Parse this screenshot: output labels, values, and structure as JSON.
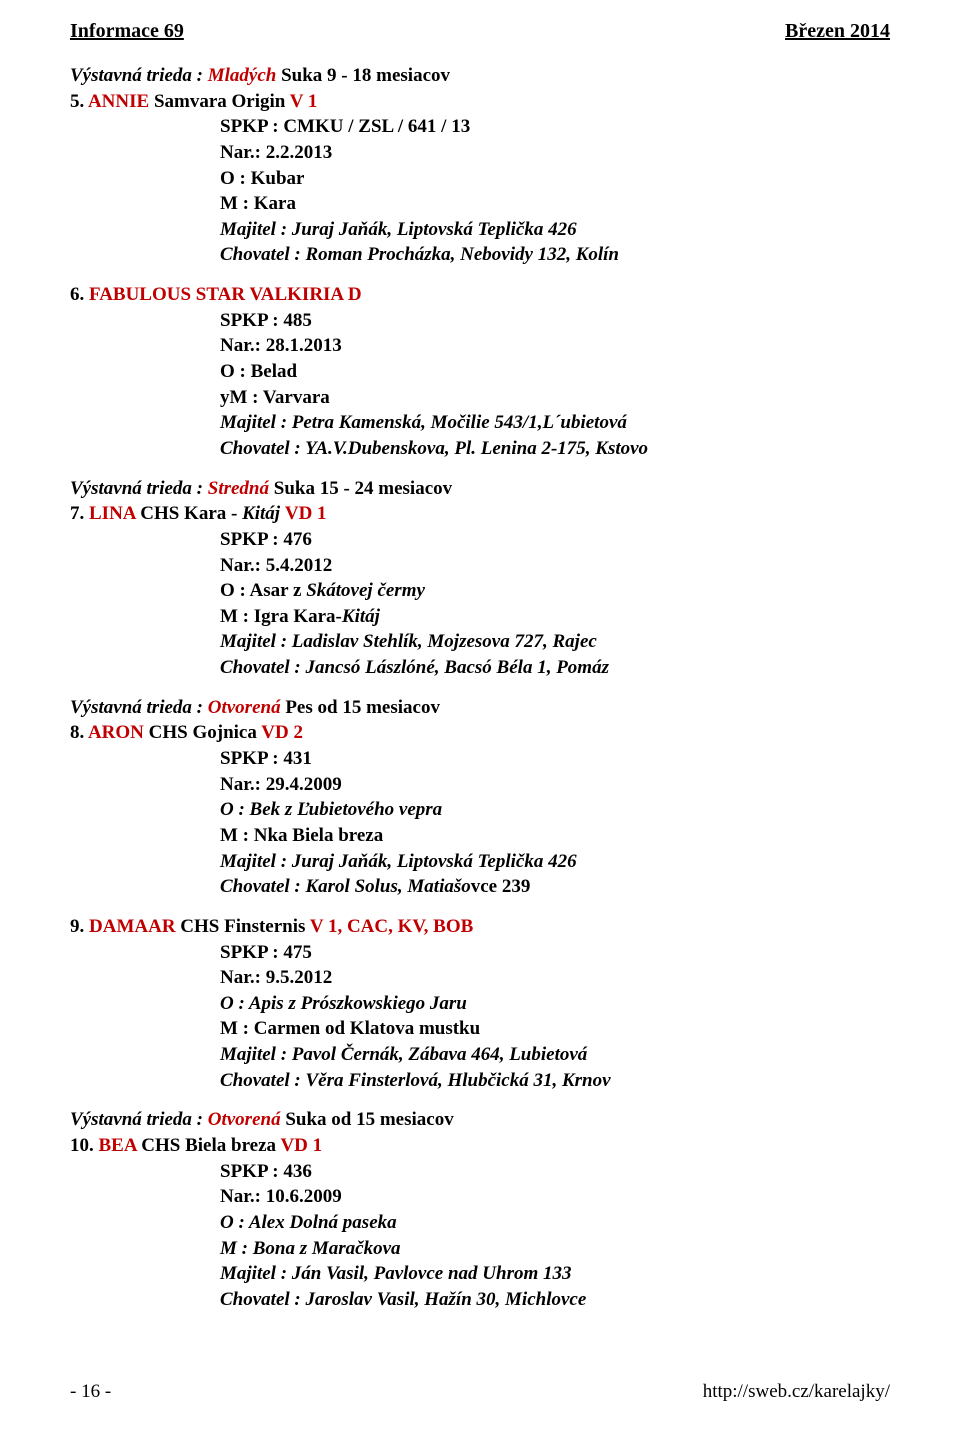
{
  "header": {
    "left": "Informace 69",
    "right": "Březen 2014"
  },
  "footer": {
    "page": "- 16 -",
    "url": "http://sweb.cz/karelajky/"
  },
  "entries": [
    {
      "class_prefix": "Výstavná trieda : ",
      "class_type": "Mladých",
      "class_suffix": " Suka 9 - 18 mesiacov",
      "num": "5. ",
      "name_red": "ANNIE ",
      "name_bold": "Samvara Origin ",
      "result": "V 1",
      "spkp": "SPKP : CMKU / ZSL / 641 / 13",
      "nar": "Nar.: 2.2.2013",
      "o": "O : Kubar",
      "m": "M : Kara",
      "majitel_plain": "Majitel : Juraj Jaňák, Liptovská Teplička 426",
      "chovatel_plain": "Chovatel : Roman Procházka, Nebovidy 132, Kolín"
    },
    {
      "num": "6. ",
      "name_red": "FABULOUS STAR VALKIRIA ",
      "result": "D",
      "spkp": "SPKP : 485",
      "nar": "Nar.: 28.1.2013",
      "o": "O : Belad",
      "m": "yM : Varvara",
      "majitel_plain": "Majitel : Petra Kamenská, Močilie 543/1,L´ubietová",
      "chovatel_plain": "Chovatel : YA.V.Dubenskova, Pl. Lenina 2-175, Kstovo"
    },
    {
      "class_prefix": "Výstavná trieda : ",
      "class_type": "Stredná",
      "class_suffix": " Suka 15 - 24 mesiacov",
      "num": "7. ",
      "name_red": "LINA ",
      "name_bold": "CHS Kara - ",
      "name_ib": "Kitáj ",
      "result": "VD 1",
      "spkp": "SPKP : 476",
      "nar": "Nar.: 5.4.2012",
      "o_pre": "O : Asar z ",
      "o_ib": "Skátovej čermy",
      "m_pre": "M : Igra Kara-",
      "m_ib": "Kitáj",
      "majitel_plain": "Majitel : Ladislav Stehlík, Mojzesova 727, Rajec",
      "chovatel_plain": "Chovatel : Jancsó Lászlóné, Bacsó Béla 1, Pomáz"
    },
    {
      "class_prefix": "Výstavná trieda : ",
      "class_type": "Otvorená",
      "class_suffix": " Pes od 15 mesiacov",
      "num": "8. ",
      "name_red": "ARON ",
      "name_bold": "CHS Gojnica ",
      "result": "VD 2",
      "spkp": "SPKP : 431",
      "nar": "Nar.: 29.4.2009",
      "o_ipre": "O : Bek z ",
      "o_irest": "Ľubietového vepra",
      "m": "M : Nka Biela breza",
      "majitel_plain": "Majitel : Juraj Jaňák, Liptovská Teplička 426",
      "chovatel_pre": "Chovatel : Karol Solus, Matiašo",
      "chovatel_rest": "vce 239"
    },
    {
      "num": "9. ",
      "name_red": "DAMAAR ",
      "name_bold": "CHS Finsternis ",
      "result": "V 1, CAC, KV, BOB",
      "spkp": "SPKP : 475",
      "nar": "Nar.: 9.5.2012",
      "o_ipre": "O : Apis z ",
      "o_irest": "Prószkowskiego Jaru",
      "m": "M : Carmen od Klatova mustku",
      "majitel_plain": "Majitel : Pavol Černák, Zábava 464, Lubietová",
      "chovatel_plain": "Chovatel : Věra Finsterlová, Hlubčická 31, Krnov"
    },
    {
      "class_prefix": "Výstavná trieda : ",
      "class_type_pre": "Ot",
      "class_type_ib": "vorená",
      "class_suffix": " Suka od 15 mesiacov",
      "num": "10. ",
      "name_red": "BEA ",
      "name_bold": "CHS Biela breza ",
      "result": "VD 1",
      "spkp": "SPKP : 436",
      "nar": "Nar.: 10.6.2009",
      "o_ipre": "O : Alex Dolná ",
      "o_irest": "paseka",
      "m_ipre": "M : Bona z ",
      "m_irest": "Maračkova",
      "majitel_plain": "Majitel : Ján Vasil, Pavlovce nad Uhrom 133",
      "chovatel_plain": "Chovatel : Jaroslav Vasil, Hažín 30, Michlovce"
    }
  ]
}
